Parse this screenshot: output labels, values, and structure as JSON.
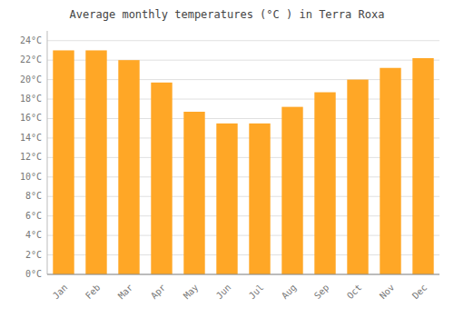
{
  "chart_data": {
    "type": "bar",
    "title": "Average monthly temperatures (°C ) in Terra Roxa",
    "categories": [
      "Jan",
      "Feb",
      "Mar",
      "Apr",
      "May",
      "Jun",
      "Jul",
      "Aug",
      "Sep",
      "Oct",
      "Nov",
      "Dec"
    ],
    "values": [
      23.0,
      23.0,
      22.0,
      19.7,
      16.7,
      15.5,
      15.5,
      17.2,
      18.7,
      20.0,
      21.2,
      22.2
    ],
    "color": "#FFA726",
    "ylim": [
      0,
      25
    ],
    "yticks": [
      {
        "value": 0,
        "label": "0°C"
      },
      {
        "value": 2,
        "label": "2°C"
      },
      {
        "value": 4,
        "label": "4°C"
      },
      {
        "value": 6,
        "label": "6°C"
      },
      {
        "value": 8,
        "label": "8°C"
      },
      {
        "value": 10,
        "label": "10°C"
      },
      {
        "value": 12,
        "label": "12°C"
      },
      {
        "value": 14,
        "label": "14°C"
      },
      {
        "value": 16,
        "label": "16°C"
      },
      {
        "value": 18,
        "label": "18°C"
      },
      {
        "value": 20,
        "label": "20°C"
      },
      {
        "value": 22,
        "label": "22°C"
      },
      {
        "value": 24,
        "label": "24°C"
      }
    ],
    "grid": true
  }
}
